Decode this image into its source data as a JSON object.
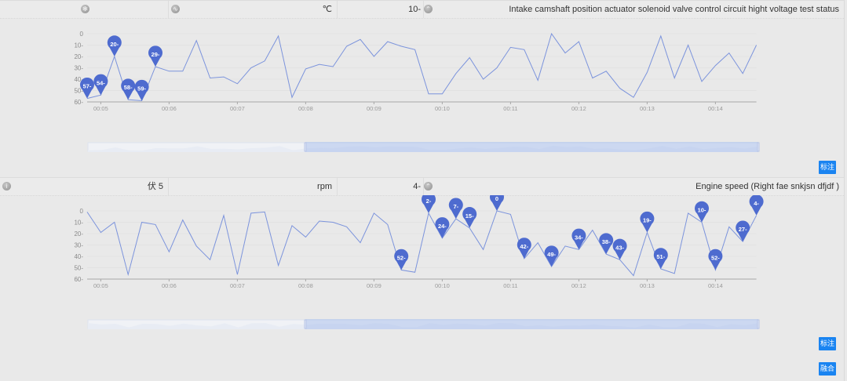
{
  "panels": [
    {
      "header": {
        "icon_left": "snowflake-icon",
        "icon_mid": "gauge-icon",
        "col1_text": "",
        "unit": "℃",
        "value": "10-",
        "collapse_icon": "chevron-up-icon",
        "title": "Intake camshaft position actuator solenoid valve control circuit hight voltage test status"
      },
      "button_label": "标注"
    },
    {
      "header": {
        "icon_left": "info-icon",
        "col1_text": "伏 5",
        "unit": "rpm",
        "value": "4-",
        "collapse_icon": "chevron-up-icon",
        "title": "Engine speed (Right fae snkjsn dfjdf )"
      },
      "button_label": "标注"
    }
  ],
  "merge_button_label": "融合",
  "chart_data": [
    {
      "type": "line",
      "title": "Intake camshaft position actuator solenoid valve control circuit hight voltage test status",
      "xlabel": "",
      "ylabel": "",
      "ylim": [
        60,
        0
      ],
      "y_inverted": true,
      "yticks": [
        "0",
        "10-",
        "20-",
        "30-",
        "40-",
        "50-",
        "60-"
      ],
      "xticks": [
        "00:05",
        "00:06",
        "00:07",
        "00:08",
        "00:09",
        "00:10",
        "00:11",
        "00:12",
        "00:13",
        "00:14"
      ],
      "x_start_seconds": 4.8,
      "x_step_seconds": 0.2,
      "grid": true,
      "color": "#7b93dc",
      "values": [
        57,
        54,
        20,
        58,
        59,
        29,
        33,
        33,
        6,
        39,
        38,
        44,
        30,
        24,
        2,
        56,
        31,
        27,
        29,
        11,
        5,
        20,
        7,
        11,
        14,
        53,
        53,
        35,
        21,
        40,
        30,
        12,
        14,
        41,
        0,
        17,
        7,
        39,
        33,
        48,
        56,
        34,
        2,
        39,
        10,
        42,
        28,
        17,
        35,
        10
      ],
      "markers": [
        {
          "index": 0,
          "label": "57-"
        },
        {
          "index": 1,
          "label": "54-"
        },
        {
          "index": 2,
          "label": "20-"
        },
        {
          "index": 3,
          "label": "58-"
        },
        {
          "index": 4,
          "label": "59-"
        },
        {
          "index": 5,
          "label": "29-"
        }
      ]
    },
    {
      "type": "line",
      "title": "Engine speed (Right fae snkjsn dfjdf )",
      "xlabel": "",
      "ylabel": "",
      "ylim": [
        60,
        0
      ],
      "y_inverted": true,
      "yticks": [
        "0",
        "10-",
        "20-",
        "30-",
        "40-",
        "50-",
        "60-"
      ],
      "xticks": [
        "00:05",
        "00:06",
        "00:07",
        "00:08",
        "00:09",
        "00:10",
        "00:11",
        "00:12",
        "00:13",
        "00:14"
      ],
      "x_start_seconds": 4.8,
      "x_step_seconds": 0.2,
      "grid": true,
      "color": "#7b93dc",
      "values": [
        1,
        19,
        10,
        56,
        10,
        12,
        36,
        8,
        31,
        43,
        4,
        56,
        2,
        1,
        48,
        13,
        23,
        9,
        10,
        14,
        28,
        2,
        12,
        52,
        54,
        2,
        24,
        7,
        15,
        34,
        0,
        3,
        42,
        28,
        49,
        31,
        34,
        17,
        38,
        43,
        57,
        19,
        51,
        55,
        2,
        10,
        52,
        14,
        27,
        4
      ],
      "markers": [
        {
          "index": 23,
          "label": "52-"
        },
        {
          "index": 25,
          "label": "2-"
        },
        {
          "index": 26,
          "label": "24-"
        },
        {
          "index": 27,
          "label": "7-"
        },
        {
          "index": 28,
          "label": "15-"
        },
        {
          "index": 30,
          "label": "0"
        },
        {
          "index": 32,
          "label": "42-"
        },
        {
          "index": 34,
          "label": "49-"
        },
        {
          "index": 36,
          "label": "34-"
        },
        {
          "index": 38,
          "label": "38-"
        },
        {
          "index": 39,
          "label": "43-"
        },
        {
          "index": 41,
          "label": "19-"
        },
        {
          "index": 42,
          "label": "51-"
        },
        {
          "index": 45,
          "label": "10-"
        },
        {
          "index": 46,
          "label": "52-"
        },
        {
          "index": 48,
          "label": "27-"
        },
        {
          "index": 49,
          "label": "4-"
        }
      ]
    }
  ],
  "colors": {
    "accent": "#1a84f1",
    "line": "#7b93dc",
    "marker": "#4e6bcf",
    "background": "#e9e9e9"
  }
}
